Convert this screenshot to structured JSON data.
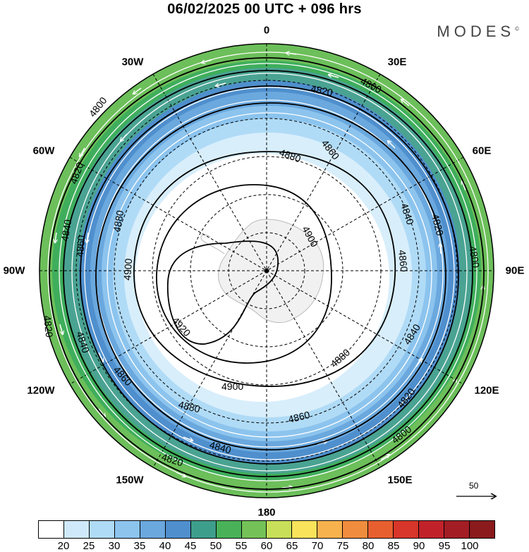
{
  "header": {
    "title": "06/02/2025  00 UTC  + 096 hrs",
    "brand": "MODES",
    "brand_mark": "©"
  },
  "longitude_labels": {
    "n": "0",
    "e30": "30E",
    "e60": "60E",
    "e90": "90E",
    "e120": "120E",
    "e150": "150E",
    "s": "180",
    "w150": "150W",
    "w120": "120W",
    "w90": "90W",
    "w60": "60W",
    "w30": "30W"
  },
  "contours": {
    "labels": [
      "4800",
      "4820",
      "4840",
      "4860",
      "4880",
      "4900",
      "4920"
    ]
  },
  "vector_legend": {
    "value": "50"
  },
  "colorbar": {
    "ticks": [
      "20",
      "25",
      "30",
      "35",
      "40",
      "45",
      "50",
      "55",
      "60",
      "65",
      "70",
      "75",
      "80",
      "85",
      "90",
      "95",
      "100"
    ],
    "colors": [
      "#ffffff",
      "#cfe9fb",
      "#b0dbf6",
      "#8cc4ee",
      "#6aa8de",
      "#4f8fcd",
      "#3e9e8c",
      "#49b259",
      "#74c257",
      "#c8df5a",
      "#f9e35a",
      "#f7b24d",
      "#f08c3d",
      "#e75f2f",
      "#d8362a",
      "#c1222a",
      "#a31d24",
      "#8a1a1c"
    ]
  }
}
